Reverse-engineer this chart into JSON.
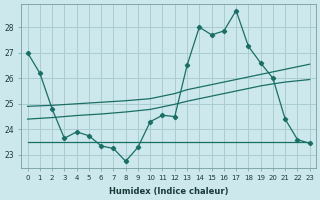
{
  "xlabel": "Humidex (Indice chaleur)",
  "ylabel": "",
  "background_color": "#cce8ec",
  "grid_color": "#aacdd2",
  "line_color": "#1a6e65",
  "xlim": [
    -0.5,
    23.5
  ],
  "ylim": [
    22.5,
    28.9
  ],
  "yticks": [
    23,
    24,
    25,
    26,
    27,
    28
  ],
  "xticks": [
    0,
    1,
    2,
    3,
    4,
    5,
    6,
    7,
    8,
    9,
    10,
    11,
    12,
    13,
    14,
    15,
    16,
    17,
    18,
    19,
    20,
    21,
    22,
    23
  ],
  "series1": [
    27.0,
    26.2,
    24.8,
    23.65,
    23.9,
    23.75,
    23.35,
    23.25,
    22.75,
    23.3,
    24.3,
    24.55,
    24.5,
    26.5,
    28.0,
    27.7,
    27.85,
    28.65,
    27.25,
    26.6,
    26.0,
    24.4,
    23.6,
    23.45
  ],
  "series2": [
    23.5,
    23.5,
    23.5,
    23.5,
    23.5,
    23.5,
    23.5,
    23.5,
    23.5,
    23.5,
    23.5,
    23.5,
    23.5,
    23.5,
    23.5,
    23.5,
    23.5,
    23.5,
    23.5,
    23.5,
    23.5,
    23.5,
    23.5,
    23.5
  ],
  "series3": [
    24.9,
    24.92,
    24.94,
    24.97,
    25.0,
    25.03,
    25.06,
    25.09,
    25.12,
    25.16,
    25.2,
    25.3,
    25.4,
    25.55,
    25.65,
    25.75,
    25.85,
    25.95,
    26.05,
    26.15,
    26.25,
    26.35,
    26.45,
    26.55
  ],
  "series4": [
    24.4,
    24.43,
    24.46,
    24.5,
    24.54,
    24.57,
    24.6,
    24.64,
    24.68,
    24.73,
    24.78,
    24.88,
    24.98,
    25.1,
    25.2,
    25.3,
    25.4,
    25.5,
    25.6,
    25.7,
    25.78,
    25.85,
    25.9,
    25.95
  ]
}
